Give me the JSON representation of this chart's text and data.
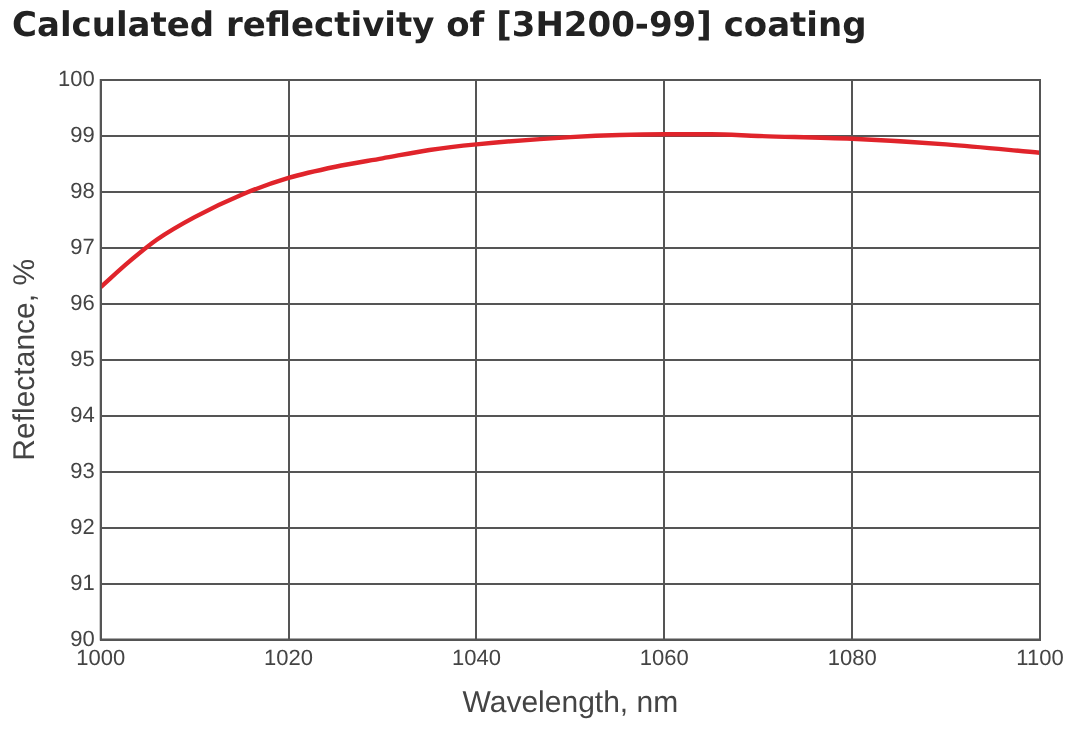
{
  "chart_data": {
    "type": "line",
    "title": "Calculated reflectivity of [3H200-99] coating",
    "xlabel": "Wavelength, nm",
    "ylabel": "Reflectance, %",
    "x": [
      1000,
      1003,
      1006,
      1010,
      1015,
      1020,
      1025,
      1030,
      1035,
      1040,
      1050,
      1060,
      1065,
      1070,
      1080,
      1090,
      1100
    ],
    "series": [
      {
        "color": "#e0242b",
        "values": [
          96.3,
          96.75,
          97.15,
          97.55,
          97.95,
          98.25,
          98.45,
          98.6,
          98.75,
          98.85,
          98.98,
          99.03,
          99.03,
          99.0,
          98.95,
          98.85,
          98.7
        ]
      }
    ],
    "xlim": [
      1000,
      1100
    ],
    "xticks": [
      1000,
      1020,
      1040,
      1060,
      1080,
      1100
    ],
    "ylim": [
      90,
      100
    ],
    "yticks": [
      90,
      91,
      92,
      93,
      94,
      95,
      96,
      97,
      98,
      99,
      100
    ],
    "grid": true,
    "legend": false,
    "marker": "none",
    "line_style": "solid"
  }
}
